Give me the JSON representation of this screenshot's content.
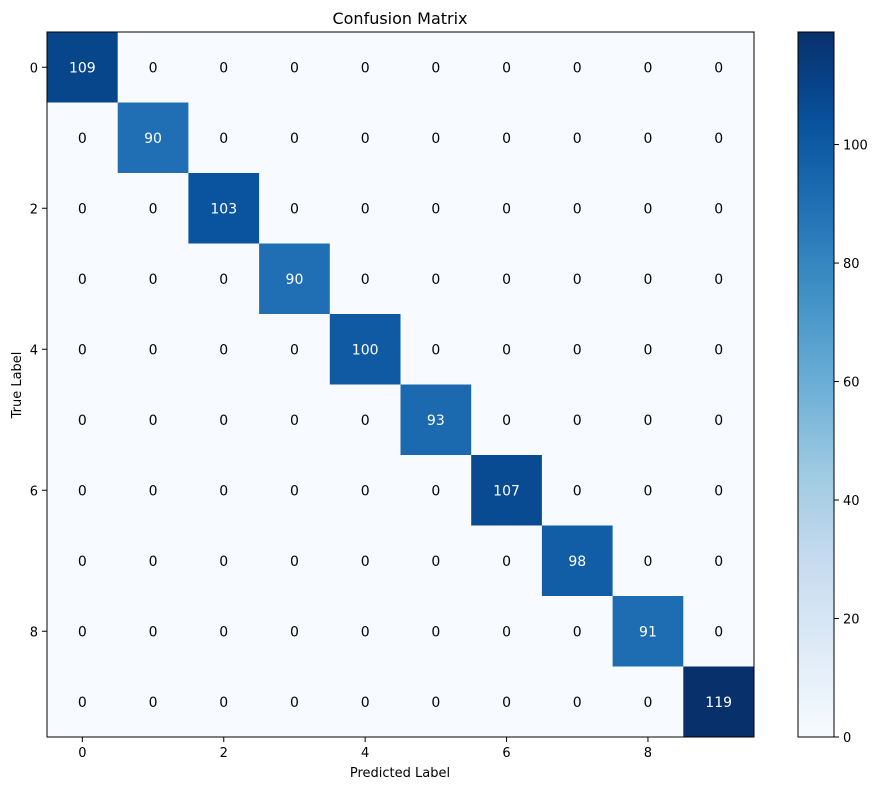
{
  "chart_data": {
    "type": "heatmap",
    "title": "Confusion Matrix",
    "xlabel": "Predicted Label",
    "ylabel": "True Label",
    "rows": [
      0,
      1,
      2,
      3,
      4,
      5,
      6,
      7,
      8,
      9
    ],
    "cols": [
      0,
      1,
      2,
      3,
      4,
      5,
      6,
      7,
      8,
      9
    ],
    "x_tick_labels": [
      "0",
      "2",
      "4",
      "6",
      "8"
    ],
    "x_tick_positions": [
      0,
      2,
      4,
      6,
      8
    ],
    "y_tick_labels": [
      "0",
      "2",
      "4",
      "6",
      "8"
    ],
    "y_tick_positions": [
      0,
      2,
      4,
      6,
      8
    ],
    "matrix": [
      [
        109,
        0,
        0,
        0,
        0,
        0,
        0,
        0,
        0,
        0
      ],
      [
        0,
        90,
        0,
        0,
        0,
        0,
        0,
        0,
        0,
        0
      ],
      [
        0,
        0,
        103,
        0,
        0,
        0,
        0,
        0,
        0,
        0
      ],
      [
        0,
        0,
        0,
        90,
        0,
        0,
        0,
        0,
        0,
        0
      ],
      [
        0,
        0,
        0,
        0,
        100,
        0,
        0,
        0,
        0,
        0
      ],
      [
        0,
        0,
        0,
        0,
        0,
        93,
        0,
        0,
        0,
        0
      ],
      [
        0,
        0,
        0,
        0,
        0,
        0,
        107,
        0,
        0,
        0
      ],
      [
        0,
        0,
        0,
        0,
        0,
        0,
        0,
        98,
        0,
        0
      ],
      [
        0,
        0,
        0,
        0,
        0,
        0,
        0,
        0,
        91,
        0
      ],
      [
        0,
        0,
        0,
        0,
        0,
        0,
        0,
        0,
        0,
        119
      ]
    ],
    "colormap": "Blues",
    "colorbar": {
      "range": [
        0,
        119
      ],
      "ticks": [
        0,
        20,
        40,
        60,
        80,
        100
      ],
      "tick_labels": [
        "0",
        "20",
        "40",
        "60",
        "80",
        "100"
      ]
    },
    "grid": false,
    "text_color_light": "#ffffff",
    "text_color_dark": "#000000"
  }
}
